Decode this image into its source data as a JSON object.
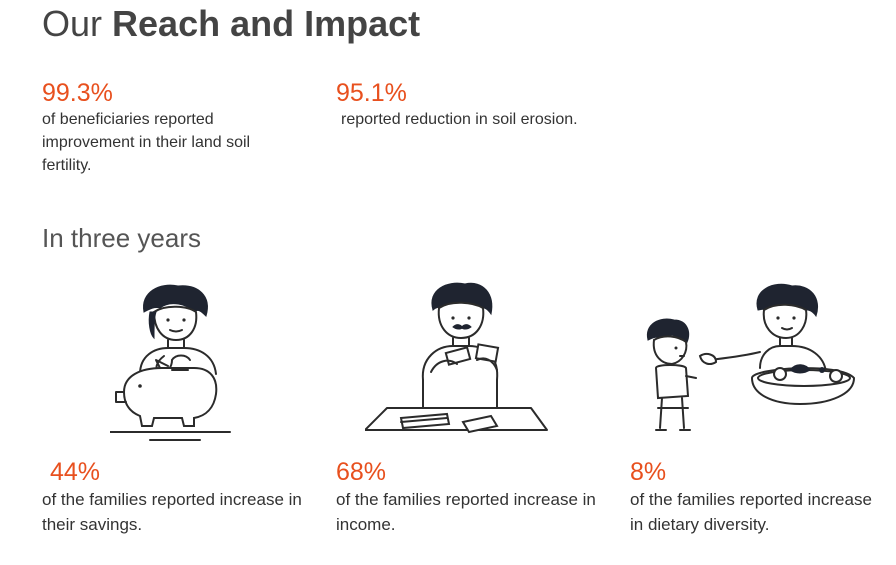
{
  "header": {
    "title_light": "Our",
    "title_bold": "Reach and Impact"
  },
  "top_stats": [
    {
      "percent": "99.3%",
      "description": "of beneficiaries reported improvement in their land soil fertility."
    },
    {
      "percent": "95.1%",
      "description": "reported reduction in soil erosion."
    }
  ],
  "section": {
    "subtitle": "In three years"
  },
  "bottom_stats": [
    {
      "percent": "44%",
      "description": "of the families reported increase in their savings.",
      "illustration": "woman-with-piggy-bank-icon"
    },
    {
      "percent": "68%",
      "description": "of the families reported increase in income.",
      "illustration": "man-counting-money-icon"
    },
    {
      "percent": "8%",
      "description": "of the families reported increase in dietary diversity.",
      "illustration": "woman-feeding-child-icon"
    }
  ],
  "colors": {
    "accent": "#e8501e",
    "title": "#444444",
    "text": "#333333",
    "illustration_hair": "#1f2430"
  }
}
